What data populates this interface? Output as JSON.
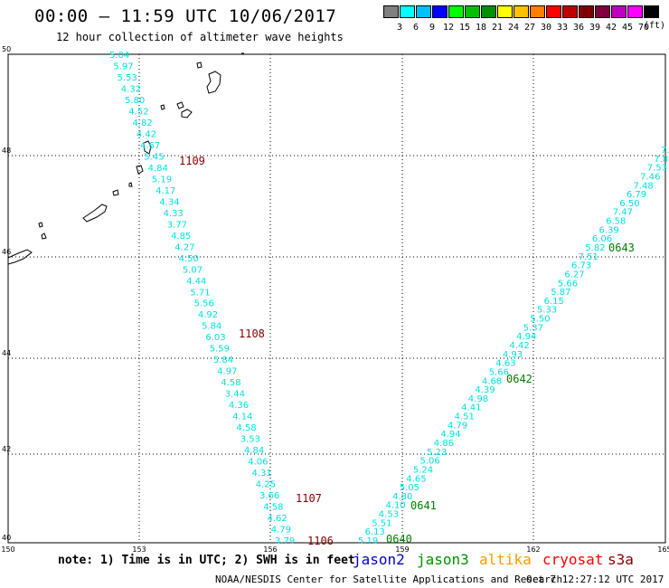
{
  "header": {
    "title": "00:00 – 11:59 UTC 10/06/2017",
    "subtitle": "12 hour collection of altimeter wave heights",
    "unit": "(ft)"
  },
  "legend": {
    "colors": [
      "#808080",
      "#00ffff",
      "#00bfff",
      "#0000ff",
      "#00ff00",
      "#00c000",
      "#009000",
      "#ffff00",
      "#ffc000",
      "#ff8000",
      "#ff0000",
      "#c00000",
      "#800000",
      "#800040",
      "#c000c0",
      "#ff00ff",
      "#000000"
    ],
    "labels": [
      "3",
      "6",
      "9",
      "12",
      "15",
      "18",
      "21",
      "24",
      "27",
      "30",
      "33",
      "36",
      "39",
      "42",
      "45",
      "70"
    ]
  },
  "axes": {
    "x_ticks": [
      "150",
      "153",
      "156",
      "159",
      "162",
      "165"
    ],
    "y_ticks": [
      "50",
      "48",
      "46",
      "44",
      "42",
      "40"
    ]
  },
  "tracks": [
    {
      "name": "west",
      "color": "#00e0e0",
      "values": [
        "5.04",
        "5.97",
        "5.53",
        "4.32",
        "5.80",
        "4.52",
        "4.82",
        "4.42",
        "4.67",
        "5.45",
        "4.84",
        "5.19",
        "4.17",
        "4.34",
        "4.33",
        "3.77",
        "4.85",
        "4.27",
        "4.50",
        "5.07",
        "4.44",
        "5.71",
        "5.56",
        "4.92",
        "5.84",
        "6.03",
        "5.59",
        "5.84",
        "4.97",
        "4.58",
        "3.44",
        "4.36",
        "4.14",
        "4.58",
        "3.53",
        "4.84",
        "4.06",
        "4.31",
        "4.25",
        "3.66",
        "4.58",
        "4.62",
        "4.79",
        "3.79"
      ],
      "times": [
        "1109",
        "1108",
        "1107",
        "1106"
      ],
      "time_color": "#800000"
    },
    {
      "name": "east",
      "color": "#00e0e0",
      "values": [
        "5.19",
        "6.13",
        "5.51",
        "4.53",
        "4.10",
        "4.80",
        "5.05",
        "4.65",
        "5.24",
        "5.06",
        "5.23",
        "4.86",
        "4.94",
        "4.79",
        "4.51",
        "4.41",
        "4.98",
        "4.39",
        "4.68",
        "5.66",
        "4.63",
        "4.93",
        "4.42",
        "4.94",
        "5.37",
        "5.50",
        "5.33",
        "6.15",
        "5.87",
        "5.66",
        "6.27",
        "6.73",
        "7.51",
        "5.82",
        "6.06",
        "6.39",
        "6.58",
        "7.47",
        "6.50",
        "6.79",
        "7.48",
        "7.46",
        "7.53",
        "7.8",
        "7."
      ],
      "times": [
        "0640",
        "0641",
        "0642",
        "0643"
      ],
      "time_color": "#008000"
    }
  ],
  "footer": {
    "note": "note: 1) Time is in UTC; 2) SWH is in feet",
    "satellites": [
      {
        "name": "jason2",
        "color": "#0000cc"
      },
      {
        "name": "jason3",
        "color": "#009000"
      },
      {
        "name": "altika",
        "color": "#ff9900"
      },
      {
        "name": "cryosat",
        "color": "#ff0000"
      },
      {
        "name": "s3a",
        "color": "#800000"
      }
    ],
    "credit": "NOAA/NESDIS Center for Satellite Applications and Research",
    "timestamp": "Oct  7 12:27:12 UTC 2017"
  }
}
